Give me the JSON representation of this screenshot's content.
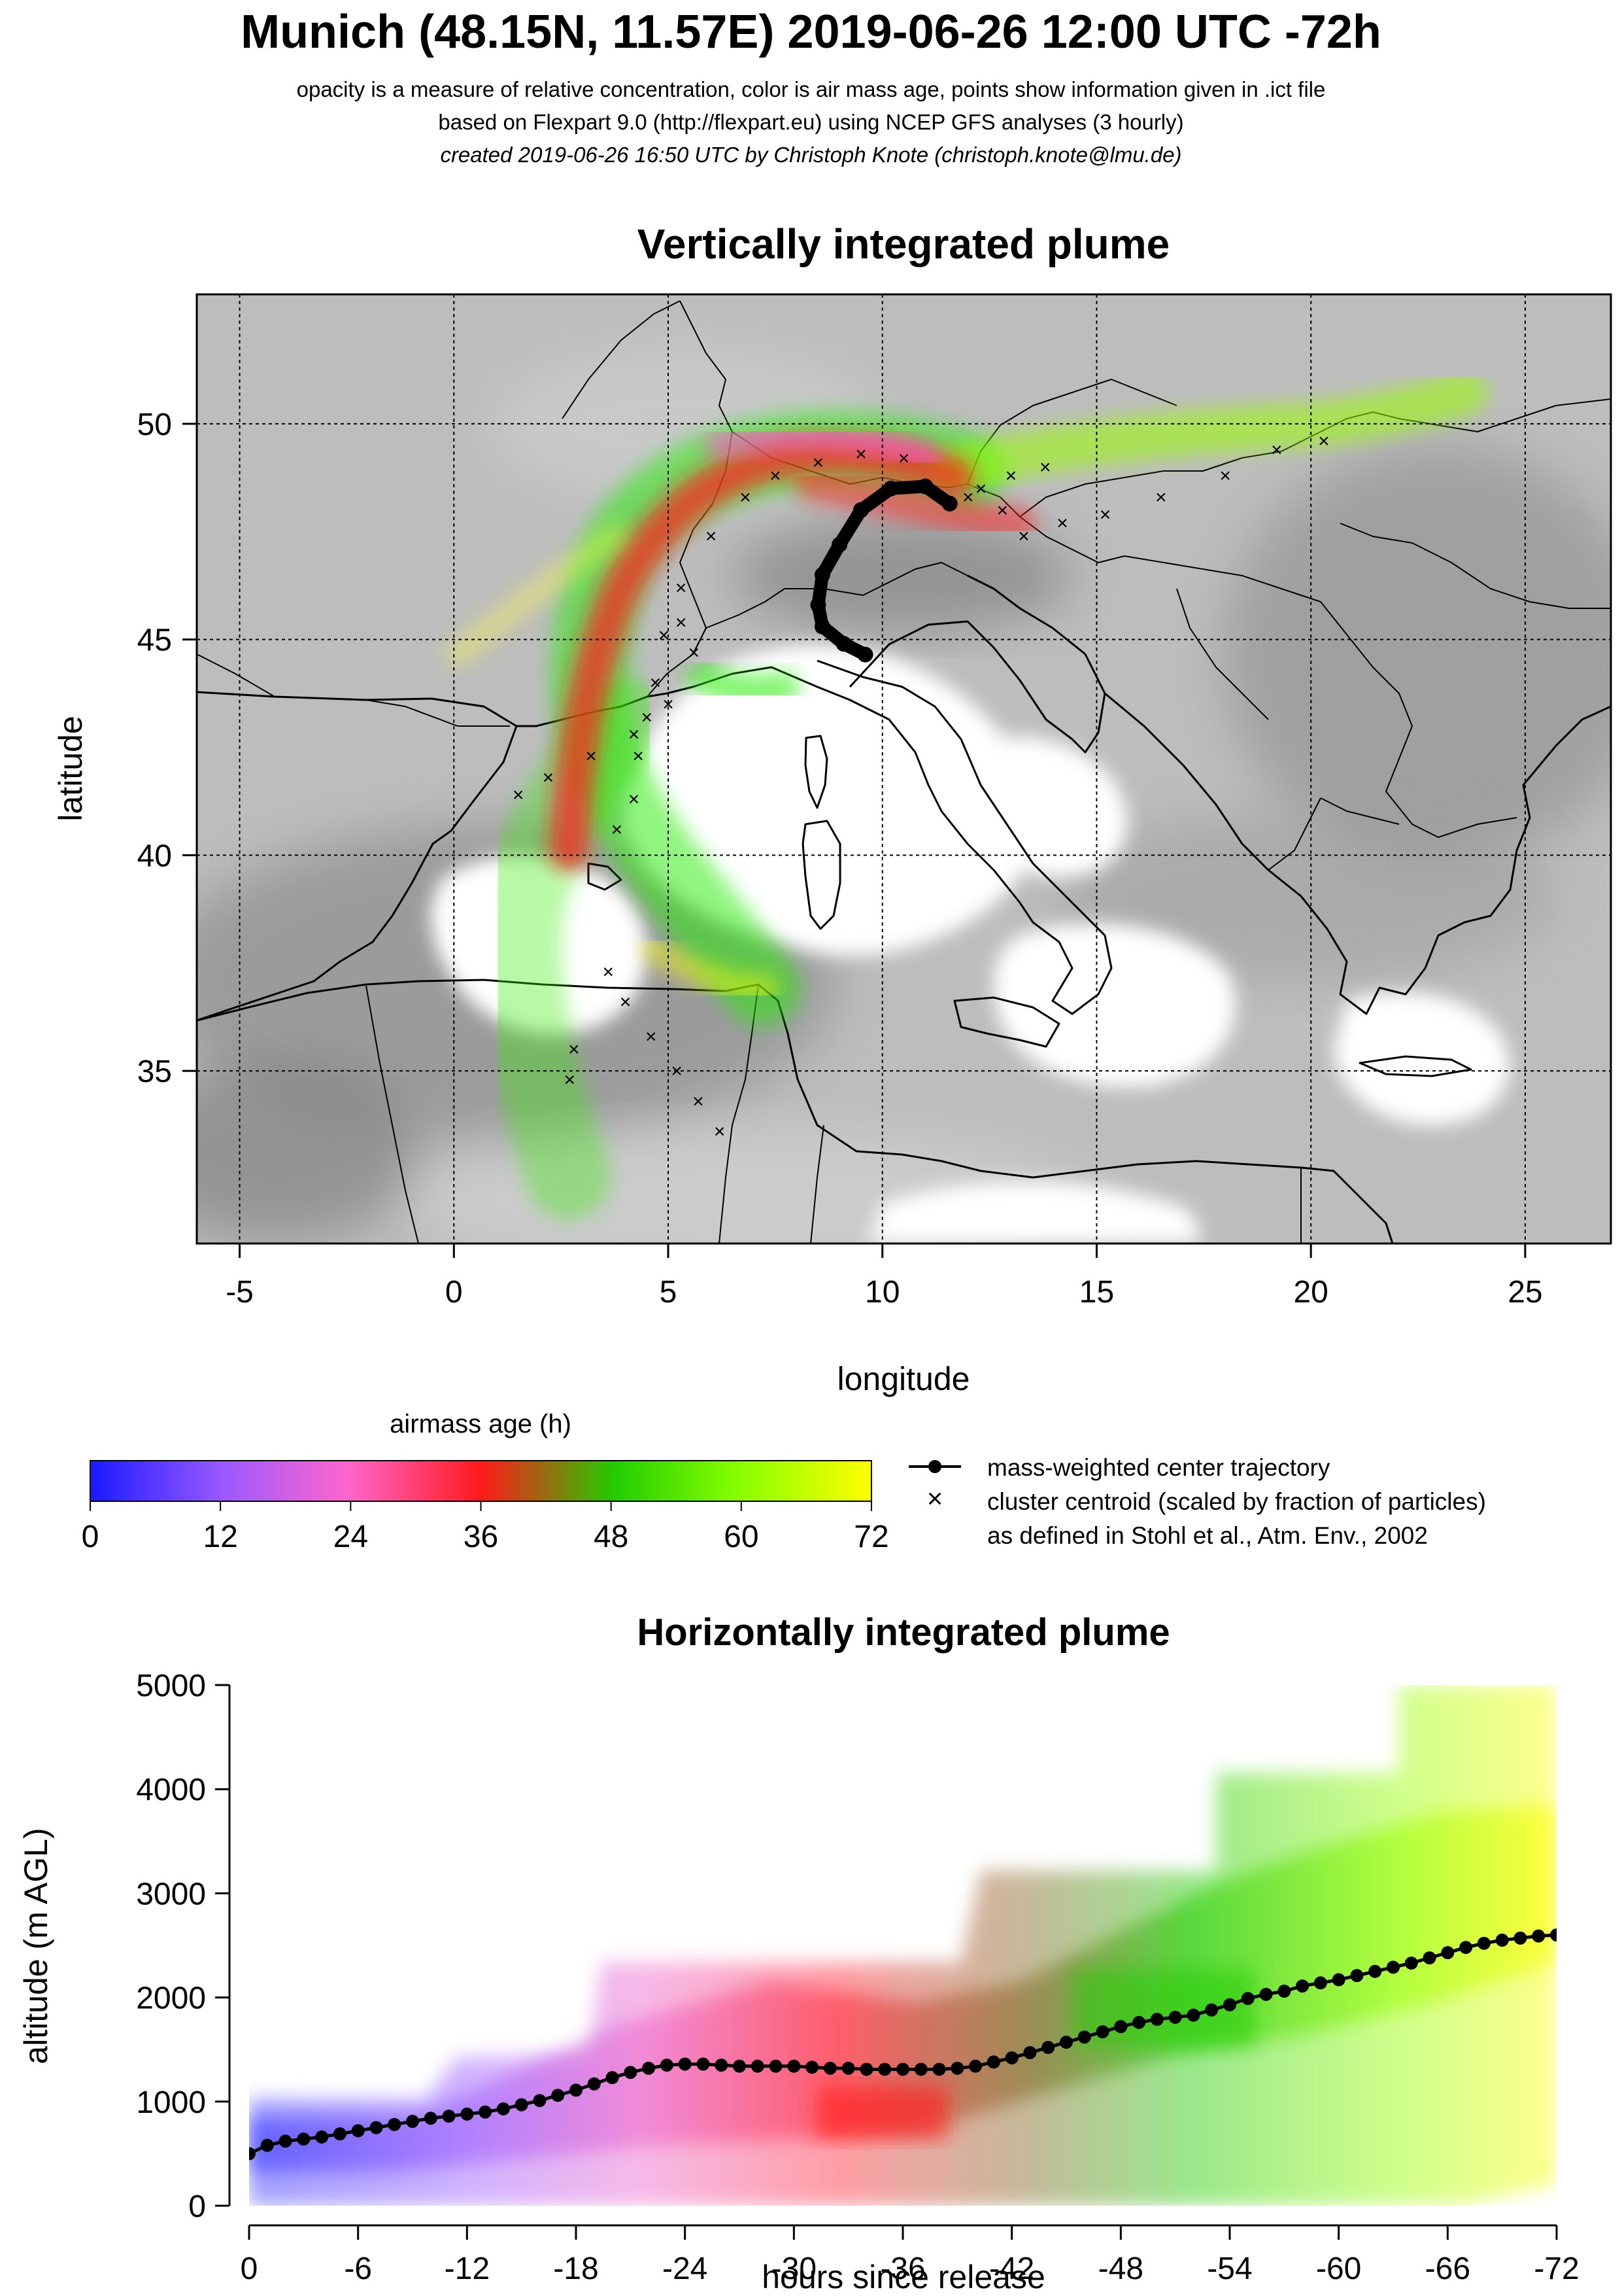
{
  "header": {
    "title": "Munich (48.15N, 11.57E) 2019-06-26 12:00 UTC -72h",
    "subtitle1": "opacity is a measure of relative concentration, color is air mass age, points show information given in .ict file",
    "subtitle2": "based on Flexpart 9.0 (http://flexpart.eu) using NCEP GFS analyses (3 hourly)",
    "subtitle3": "created 2019-06-26 16:50 UTC by Christoph Knote (christoph.knote@lmu.de)"
  },
  "legend": {
    "colorbar_title": "airmass age (h)",
    "colorbar_ticks": [
      "0",
      "12",
      "24",
      "36",
      "48",
      "60",
      "72"
    ],
    "line_label": "mass-weighted center trajectory",
    "cross_label": "cluster centroid (scaled by fraction of particles)",
    "cross_label2": "as defined in Stohl et al., Atm. Env., 2002"
  },
  "chart_data": [
    {
      "type": "scatter",
      "title": "Vertically integrated plume",
      "xlabel": "longitude",
      "ylabel": "latitude",
      "xlim": [
        -6,
        27
      ],
      "ylim": [
        31,
        53
      ],
      "x_ticks": [
        -5,
        0,
        5,
        10,
        15,
        20,
        25
      ],
      "y_ticks": [
        35,
        40,
        45,
        50
      ],
      "grid": true,
      "series": [
        {
          "name": "mass-weighted center trajectory",
          "points": [
            [
              11.57,
              48.15
            ],
            [
              11.0,
              48.55
            ],
            [
              10.2,
              48.5
            ],
            [
              9.5,
              48.0
            ],
            [
              9.0,
              47.2
            ],
            [
              8.6,
              46.5
            ],
            [
              8.5,
              45.8
            ],
            [
              8.6,
              45.3
            ],
            [
              9.1,
              44.9
            ],
            [
              9.6,
              44.65
            ]
          ]
        },
        {
          "name": "cluster centroid (scaled by fraction of particles)",
          "points": [
            [
              11.5,
              48.2
            ],
            [
              10.5,
              49.2
            ],
            [
              9.5,
              49.3
            ],
            [
              8.5,
              49.1
            ],
            [
              7.5,
              48.8
            ],
            [
              6.8,
              48.3
            ],
            [
              6.0,
              47.4
            ],
            [
              5.3,
              46.2
            ],
            [
              4.9,
              45.1
            ],
            [
              4.7,
              44.0
            ],
            [
              4.5,
              43.2
            ],
            [
              4.3,
              42.3
            ],
            [
              4.2,
              41.3
            ],
            [
              3.8,
              40.6
            ],
            [
              12.0,
              48.3
            ],
            [
              12.8,
              48.0
            ],
            [
              13.3,
              47.4
            ],
            [
              14.2,
              47.7
            ],
            [
              15.2,
              47.9
            ],
            [
              16.5,
              48.3
            ],
            [
              18.0,
              48.8
            ],
            [
              19.2,
              49.4
            ],
            [
              20.3,
              49.6
            ],
            [
              12.3,
              48.5
            ],
            [
              13.0,
              48.8
            ],
            [
              13.8,
              49.0
            ],
            [
              5.0,
              43.5
            ],
            [
              4.2,
              42.8
            ],
            [
              3.2,
              42.3
            ],
            [
              2.2,
              41.8
            ],
            [
              1.5,
              41.4
            ],
            [
              5.3,
              45.4
            ],
            [
              5.6,
              44.7
            ],
            [
              3.6,
              37.3
            ],
            [
              4.0,
              36.6
            ],
            [
              4.6,
              35.8
            ],
            [
              5.2,
              35.0
            ],
            [
              5.7,
              34.3
            ],
            [
              6.2,
              33.6
            ],
            [
              2.8,
              35.5
            ],
            [
              2.7,
              34.8
            ]
          ]
        }
      ]
    },
    {
      "type": "line",
      "title": "Horizontally integrated plume",
      "xlabel": "hours since release",
      "ylabel": "altitude (m AGL)",
      "xlim": [
        0,
        -72
      ],
      "ylim": [
        0,
        5000
      ],
      "x_ticks": [
        "0",
        "-6",
        "-12",
        "-18",
        "-24",
        "-30",
        "-36",
        "-42",
        "-48",
        "-54",
        "-60",
        "-66",
        "-72"
      ],
      "y_ticks": [
        "0",
        "1000",
        "2000",
        "3000",
        "4000",
        "5000"
      ],
      "series": [
        {
          "name": "mass-weighted center trajectory",
          "x": [
            0,
            -1,
            -2,
            -3,
            -4,
            -5,
            -6,
            -7,
            -8,
            -9,
            -10,
            -11,
            -12,
            -13,
            -14,
            -15,
            -16,
            -17,
            -18,
            -19,
            -20,
            -21,
            -22,
            -23,
            -24,
            -25,
            -26,
            -27,
            -28,
            -29,
            -30,
            -31,
            -32,
            -33,
            -34,
            -35,
            -36,
            -37,
            -38,
            -39,
            -40,
            -41,
            -42,
            -43,
            -44,
            -45,
            -46,
            -47,
            -48,
            -49,
            -50,
            -51,
            -52,
            -53,
            -54,
            -55,
            -56,
            -57,
            -58,
            -59,
            -60,
            -61,
            -62,
            -63,
            -64,
            -65,
            -66,
            -67,
            -68,
            -69,
            -70,
            -71,
            -72
          ],
          "y": [
            500,
            580,
            620,
            640,
            660,
            690,
            720,
            750,
            780,
            810,
            840,
            860,
            880,
            900,
            930,
            970,
            1010,
            1060,
            1110,
            1170,
            1230,
            1280,
            1320,
            1350,
            1360,
            1360,
            1350,
            1340,
            1340,
            1340,
            1340,
            1330,
            1320,
            1320,
            1310,
            1310,
            1310,
            1310,
            1310,
            1320,
            1340,
            1380,
            1420,
            1470,
            1520,
            1570,
            1620,
            1670,
            1720,
            1760,
            1790,
            1810,
            1830,
            1880,
            1930,
            1990,
            2030,
            2060,
            2110,
            2140,
            2170,
            2210,
            2250,
            2290,
            2330,
            2380,
            2430,
            2480,
            2520,
            2550,
            2570,
            2590,
            2600
          ]
        }
      ]
    }
  ]
}
